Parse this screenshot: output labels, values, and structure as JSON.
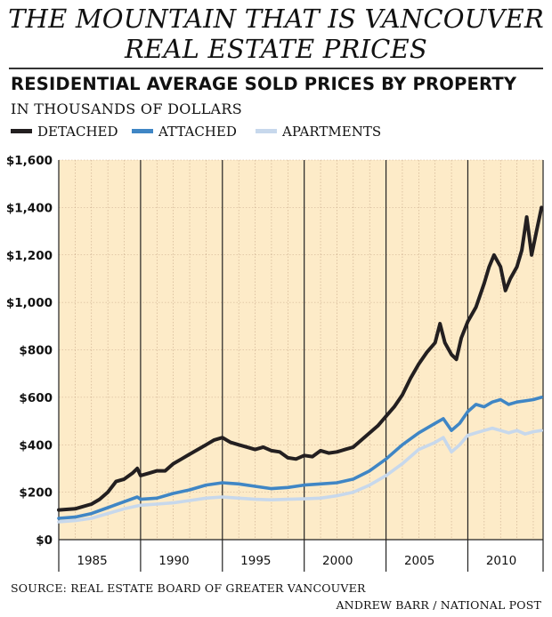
{
  "title_line1": "THE MOUNTAIN THAT IS VANCOUVER",
  "title_line2": "REAL ESTATE PRICES",
  "subtitle": "RESIDENTIAL AVERAGE SOLD PRICES BY PROPERTY",
  "units": "IN THOUSANDS OF DOLLARS",
  "source": "SOURCE: REAL ESTATE BOARD OF GREATER VANCOUVER",
  "credit": "ANDREW BARR / NATIONAL POST",
  "colors": {
    "background_plot": "#fdebc8",
    "grid": "#c8a98a",
    "detached": "#231f20",
    "attached": "#3f86c5",
    "apartments": "#c7d8ec"
  },
  "chart_data": {
    "type": "line",
    "title": "RESIDENTIAL AVERAGE SOLD PRICES BY PROPERTY",
    "ylabel": "IN THOUSANDS OF DOLLARS",
    "xlim": [
      1984.0,
      2013.6
    ],
    "ylim": [
      0,
      1600
    ],
    "yticks": [
      0,
      200,
      400,
      600,
      800,
      1000,
      1200,
      1400,
      1600
    ],
    "ytick_labels": [
      "$0",
      "$200",
      "$400",
      "$600",
      "$800",
      "$1,000",
      "$1,200",
      "$1,400",
      "$1,600"
    ],
    "xticks": [
      1985,
      1990,
      1995,
      2000,
      2005,
      2010
    ],
    "xtick_labels": [
      "1985",
      "1990",
      "1995",
      "2000",
      "2005",
      "2010"
    ],
    "grid": true,
    "legend": "top-left",
    "series": [
      {
        "name": "DETACHED",
        "color": "#231f20",
        "x": [
          1984.0,
          1985.0,
          1986.0,
          1986.5,
          1987.0,
          1987.5,
          1988.0,
          1988.5,
          1988.8,
          1989.0,
          1989.5,
          1990.0,
          1990.5,
          1991.0,
          1991.5,
          1992.0,
          1992.5,
          1993.0,
          1993.5,
          1994.0,
          1994.5,
          1995.0,
          1995.5,
          1996.0,
          1996.5,
          1997.0,
          1997.5,
          1998.0,
          1998.5,
          1999.0,
          1999.5,
          2000.0,
          2000.5,
          2001.0,
          2001.5,
          2002.0,
          2002.5,
          2003.0,
          2003.5,
          2004.0,
          2004.5,
          2005.0,
          2005.5,
          2006.0,
          2006.5,
          2007.0,
          2007.3,
          2007.6,
          2008.0,
          2008.3,
          2008.6,
          2009.0,
          2009.5,
          2010.0,
          2010.3,
          2010.6,
          2011.0,
          2011.3,
          2011.6,
          2012.0,
          2012.3,
          2012.6,
          2012.9,
          2013.2,
          2013.5
        ],
        "values": [
          125,
          130,
          150,
          170,
          200,
          245,
          255,
          280,
          300,
          270,
          280,
          290,
          290,
          320,
          340,
          360,
          380,
          400,
          420,
          430,
          410,
          400,
          390,
          380,
          390,
          375,
          370,
          345,
          340,
          355,
          350,
          375,
          365,
          370,
          380,
          390,
          420,
          450,
          480,
          520,
          560,
          610,
          680,
          740,
          790,
          830,
          910,
          830,
          780,
          760,
          850,
          920,
          980,
          1080,
          1150,
          1200,
          1150,
          1050,
          1100,
          1150,
          1220,
          1360,
          1200,
          1300,
          1400
        ]
      },
      {
        "name": "ATTACHED",
        "color": "#3f86c5",
        "x": [
          1984.0,
          1985.0,
          1986.0,
          1987.0,
          1988.0,
          1988.8,
          1989.0,
          1990.0,
          1991.0,
          1992.0,
          1993.0,
          1994.0,
          1995.0,
          1996.0,
          1997.0,
          1998.0,
          1999.0,
          2000.0,
          2001.0,
          2002.0,
          2003.0,
          2004.0,
          2005.0,
          2006.0,
          2007.0,
          2007.5,
          2008.0,
          2008.5,
          2009.0,
          2009.5,
          2010.0,
          2010.5,
          2011.0,
          2011.5,
          2012.0,
          2012.5,
          2013.0,
          2013.5
        ],
        "values": [
          90,
          95,
          110,
          135,
          160,
          180,
          170,
          175,
          195,
          210,
          230,
          240,
          235,
          225,
          215,
          220,
          230,
          235,
          240,
          255,
          290,
          340,
          400,
          450,
          490,
          510,
          460,
          490,
          540,
          570,
          560,
          580,
          590,
          570,
          580,
          585,
          590,
          600
        ]
      },
      {
        "name": "APARTMENTS",
        "color": "#c7d8ec",
        "x": [
          1984.0,
          1985.0,
          1986.0,
          1987.0,
          1988.0,
          1989.0,
          1990.0,
          1991.0,
          1992.0,
          1993.0,
          1994.0,
          1995.0,
          1996.0,
          1997.0,
          1998.0,
          1999.0,
          2000.0,
          2001.0,
          2002.0,
          2003.0,
          2004.0,
          2005.0,
          2006.0,
          2007.0,
          2007.5,
          2008.0,
          2008.5,
          2009.0,
          2009.5,
          2010.0,
          2010.5,
          2011.0,
          2011.5,
          2012.0,
          2012.5,
          2013.0,
          2013.5
        ],
        "values": [
          75,
          80,
          90,
          110,
          130,
          145,
          150,
          155,
          165,
          175,
          180,
          175,
          170,
          168,
          170,
          172,
          175,
          185,
          200,
          230,
          270,
          320,
          380,
          410,
          430,
          370,
          400,
          440,
          450,
          460,
          470,
          460,
          450,
          460,
          445,
          455,
          460
        ]
      }
    ]
  }
}
